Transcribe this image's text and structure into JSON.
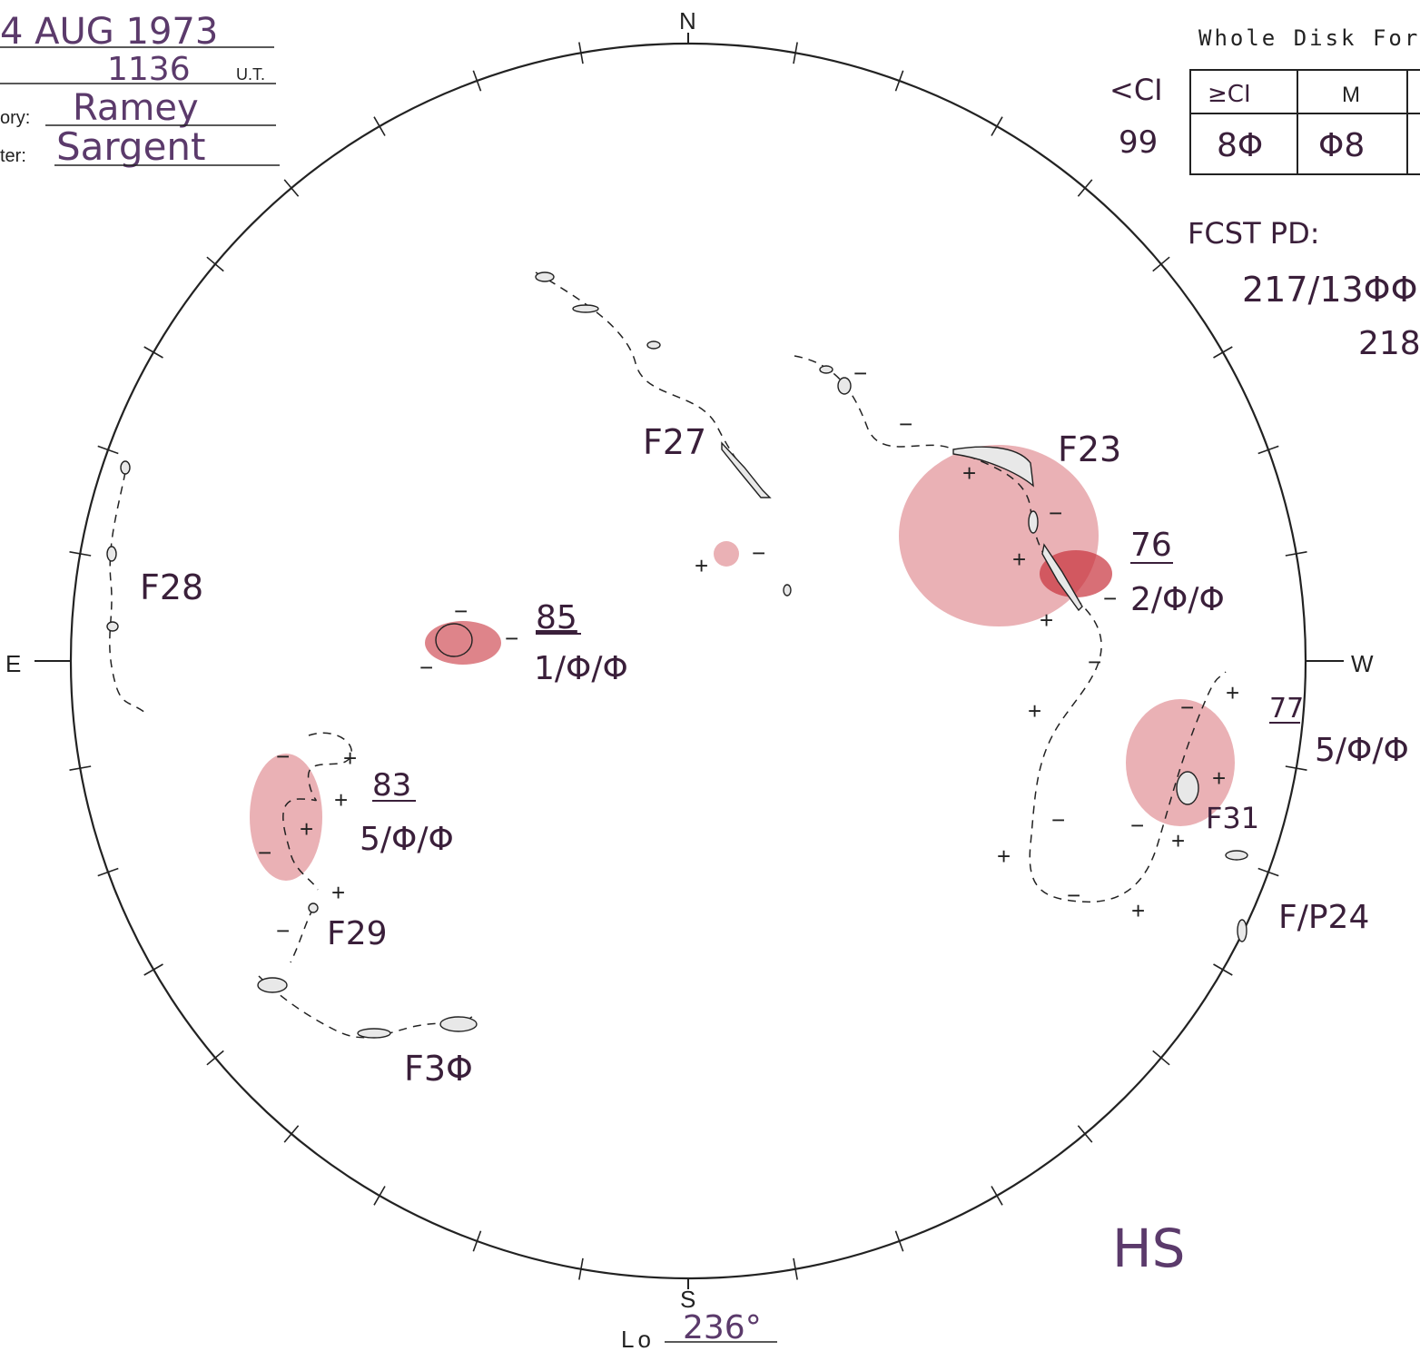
{
  "header": {
    "date": "4 AUG 1973",
    "time": "1136",
    "time_unit": "U.T.",
    "observatory_label": "ory:",
    "observatory_value": "Ramey",
    "forecaster_label": "ter:",
    "forecaster_value": "Sargent"
  },
  "forecast_box": {
    "title": "Whole Disk For",
    "side_label_top": "<CI",
    "side_label_bottom": "99",
    "headers": [
      "≥CI",
      "M"
    ],
    "values": [
      "8Φ",
      "Φ8"
    ]
  },
  "forecast_period": {
    "label": "FCST PD:",
    "line1": "217/13ΦΦ",
    "line2": "218"
  },
  "compass": {
    "north": "N",
    "south": "S",
    "east": "E",
    "west": "W"
  },
  "longitude": {
    "label": "Lo",
    "value": "236°"
  },
  "initials": "HS",
  "regions": [
    {
      "id": "F27",
      "label": "F27"
    },
    {
      "id": "F23",
      "label": "F23"
    },
    {
      "id": "F28",
      "label": "F28"
    },
    {
      "id": "85",
      "number": "85",
      "class": "1/Φ/Φ"
    },
    {
      "id": "76",
      "number": "76",
      "class": "2/Φ/Φ"
    },
    {
      "id": "77",
      "number": "77",
      "class": "5/Φ/Φ"
    },
    {
      "id": "83",
      "number": "83",
      "class": "5/Φ/Φ"
    },
    {
      "id": "F29",
      "label": "F29"
    },
    {
      "id": "F30",
      "label": "F3Φ"
    },
    {
      "id": "F31",
      "label": "F31"
    },
    {
      "id": "FP24",
      "label": "F/P24"
    }
  ],
  "colors": {
    "ink": "#222222",
    "plage": "#c8323c",
    "handwriting": "#3a1f3a"
  }
}
